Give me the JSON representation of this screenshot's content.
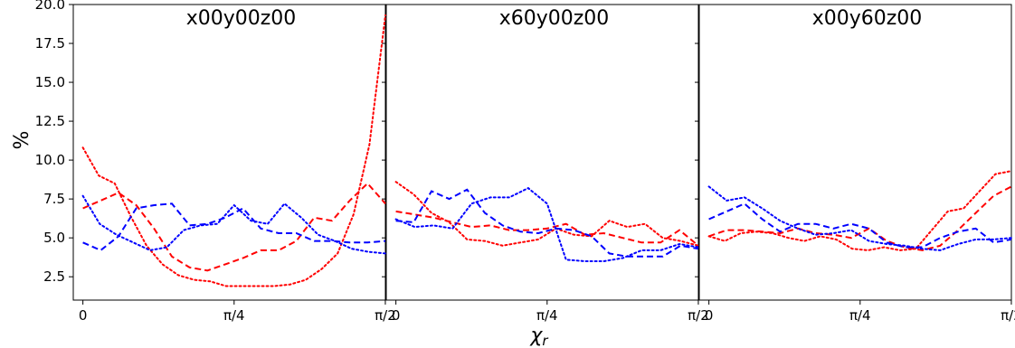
{
  "chart_data": {
    "type": "line",
    "ylabel": "%",
    "xlabel": "χ_r",
    "ylim": [
      1.0,
      20.0
    ],
    "xlim": [
      -0.05,
      1.571
    ],
    "yticks": [
      2.5,
      5.0,
      7.5,
      10.0,
      12.5,
      15.0,
      17.5,
      20.0
    ],
    "ytick_labels": [
      "2.5",
      "5.0",
      "7.5",
      "10.0",
      "12.5",
      "15.0",
      "17.5",
      "20.0"
    ],
    "xticks": [
      0,
      0.7854,
      1.5708
    ],
    "xtick_labels": [
      "0",
      "π/4",
      "π/2"
    ],
    "grid": false,
    "colors": {
      "red": "#ff0000",
      "blue": "#0000ff"
    },
    "panels": [
      {
        "title": "x00y00z00",
        "series": [
          {
            "color": "red",
            "dash": "dotted",
            "values": [
              10.8,
              9.0,
              8.5,
              6.4,
              4.5,
              3.3,
              2.6,
              2.3,
              2.2,
              1.9,
              1.9,
              1.9,
              1.9,
              2.0,
              2.3,
              3.0,
              4.0,
              6.5,
              11.0,
              19.3
            ]
          },
          {
            "color": "red",
            "dash": "dashed",
            "values": [
              6.9,
              7.4,
              7.9,
              7.1,
              5.6,
              3.8,
              3.1,
              2.9,
              3.3,
              3.7,
              4.2,
              4.2,
              4.8,
              6.3,
              6.1,
              7.4,
              8.5,
              7.2
            ]
          },
          {
            "color": "blue",
            "dash": "dotted",
            "values": [
              7.7,
              5.9,
              5.2,
              4.7,
              4.2,
              4.4,
              5.5,
              5.8,
              5.9,
              7.1,
              6.1,
              5.9,
              7.2,
              6.3,
              5.2,
              4.8,
              4.3,
              4.1,
              4.0
            ]
          },
          {
            "color": "blue",
            "dash": "dashed",
            "values": [
              4.7,
              4.2,
              5.1,
              6.9,
              7.1,
              7.2,
              5.8,
              5.9,
              6.3,
              6.9,
              5.6,
              5.3,
              5.3,
              4.8,
              4.8,
              4.7,
              4.7,
              4.8
            ]
          }
        ]
      },
      {
        "title": "x60y00z00",
        "series": [
          {
            "color": "red",
            "dash": "dotted",
            "values": [
              8.6,
              7.8,
              6.6,
              6.0,
              4.9,
              4.8,
              4.5,
              4.7,
              4.9,
              5.6,
              5.2,
              5.1,
              6.1,
              5.7,
              5.9,
              5.0,
              4.8,
              4.5
            ]
          },
          {
            "color": "red",
            "dash": "dashed",
            "values": [
              6.7,
              6.5,
              6.3,
              6.0,
              5.7,
              5.8,
              5.5,
              5.5,
              5.6,
              5.9,
              5.2,
              5.3,
              5.0,
              4.7,
              4.7,
              5.5,
              4.5
            ]
          },
          {
            "color": "blue",
            "dash": "dotted",
            "values": [
              6.2,
              5.7,
              5.8,
              5.6,
              7.2,
              7.6,
              7.6,
              8.2,
              7.2,
              3.6,
              3.5,
              3.5,
              3.7,
              4.2,
              4.2,
              4.6,
              4.4
            ]
          },
          {
            "color": "blue",
            "dash": "dashed",
            "values": [
              6.1,
              6.0,
              8.0,
              7.5,
              8.1,
              6.6,
              5.8,
              5.4,
              5.3,
              5.6,
              5.5,
              5.1,
              4.0,
              3.8,
              3.8,
              3.8,
              4.5,
              4.3
            ]
          }
        ]
      },
      {
        "title": "x00y60z00",
        "series": [
          {
            "color": "red",
            "dash": "dotted",
            "values": [
              5.1,
              4.8,
              5.3,
              5.4,
              5.3,
              5.0,
              4.8,
              5.1,
              4.9,
              4.3,
              4.2,
              4.4,
              4.2,
              4.3,
              5.5,
              6.7,
              6.9,
              8.0,
              9.1,
              9.3
            ]
          },
          {
            "color": "red",
            "dash": "dashed",
            "values": [
              5.1,
              5.5,
              5.5,
              5.4,
              5.3,
              5.6,
              5.3,
              5.2,
              5.0,
              5.6,
              4.8,
              4.4,
              4.2,
              4.5,
              5.5,
              6.6,
              7.7,
              8.3
            ]
          },
          {
            "color": "blue",
            "dash": "dotted",
            "values": [
              8.3,
              7.4,
              7.6,
              6.9,
              6.1,
              5.6,
              5.2,
              5.3,
              5.5,
              4.8,
              4.6,
              4.5,
              4.3,
              4.2,
              4.6,
              4.9,
              4.9,
              5.0
            ]
          },
          {
            "color": "blue",
            "dash": "dashed",
            "values": [
              6.2,
              6.7,
              7.2,
              6.2,
              5.4,
              5.9,
              5.9,
              5.6,
              5.9,
              5.6,
              4.7,
              4.4,
              4.4,
              5.0,
              5.4,
              5.6,
              4.7,
              4.9
            ]
          }
        ]
      }
    ]
  }
}
